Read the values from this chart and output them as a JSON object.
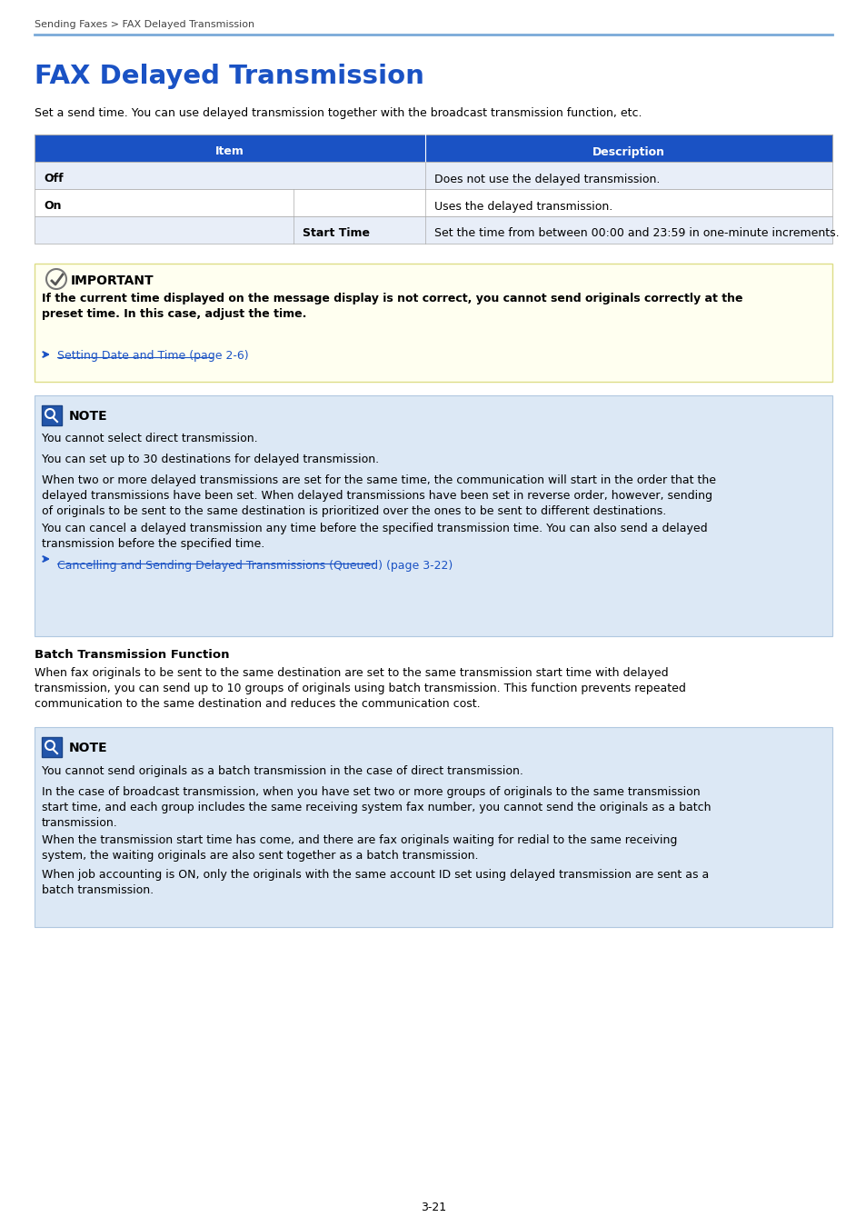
{
  "breadcrumb": "Sending Faxes > FAX Delayed Transmission",
  "title": "FAX Delayed Transmission",
  "intro": "Set a send time. You can use delayed transmission together with the broadcast transmission function, etc.",
  "important_title": "IMPORTANT",
  "important_text_bold": "If the current time displayed on the message display is not correct, you cannot send originals correctly at the\npreset time. In this case, adjust the time.",
  "important_link": "Setting Date and Time (page 2-6)",
  "note1_title": "NOTE",
  "note1_para1": "You cannot select direct transmission.",
  "note1_para2": "You can set up to 30 destinations for delayed transmission.",
  "note1_para3": "When two or more delayed transmissions are set for the same time, the communication will start in the order that the\ndelayed transmissions have been set. When delayed transmissions have been set in reverse order, however, sending\nof originals to be sent to the same destination is prioritized over the ones to be sent to different destinations.",
  "note1_para4": "You can cancel a delayed transmission any time before the specified transmission time. You can also send a delayed\ntransmission before the specified time.",
  "note1_link": "Cancelling and Sending Delayed Transmissions (Queued) (page 3-22)",
  "batch_title": "Batch Transmission Function",
  "batch_text": "When fax originals to be sent to the same destination are set to the same transmission start time with delayed\ntransmission, you can send up to 10 groups of originals using batch transmission. This function prevents repeated\ncommunication to the same destination and reduces the communication cost.",
  "note2_title": "NOTE",
  "note2_para1": "You cannot send originals as a batch transmission in the case of direct transmission.",
  "note2_para2": "In the case of broadcast transmission, when you have set two or more groups of originals to the same transmission\nstart time, and each group includes the same receiving system fax number, you cannot send the originals as a batch\ntransmission.",
  "note2_para3": "When the transmission start time has come, and there are fax originals waiting for redial to the same receiving\nsystem, the waiting originals are also sent together as a batch transmission.",
  "note2_para4": "When job accounting is ON, only the originals with the same account ID set using delayed transmission are sent as a\nbatch transmission.",
  "page_number": "3-21",
  "table_header_bg": "#1a52c4",
  "table_row1_bg": "#e8eef8",
  "table_row2_bg": "#ffffff",
  "table_row3_bg": "#e8eef8",
  "table_border": "#aaaaaa",
  "important_bg": "#fffff0",
  "important_border": "#dddd88",
  "note_bg": "#dce8f5",
  "note_border": "#b0c8e0",
  "title_color": "#1a52c4",
  "link_color": "#1a52c4",
  "header_line_color": "#7aaad8",
  "breadcrumb_color": "#444444"
}
